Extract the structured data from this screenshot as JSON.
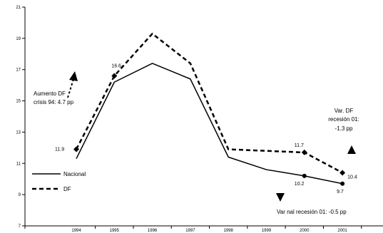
{
  "chart_data": {
    "type": "line",
    "x": [
      "1994",
      "1995",
      "1996",
      "1997",
      "1998",
      "1999",
      "2000",
      "2001"
    ],
    "series": [
      {
        "name": "Nacional",
        "values": [
          11.3,
          16.2,
          17.4,
          16.4,
          11.4,
          10.6,
          10.2,
          9.7
        ],
        "style": "solid",
        "color": "#000000"
      },
      {
        "name": "DF",
        "values": [
          11.9,
          16.6,
          19.3,
          17.4,
          11.9,
          11.8,
          11.7,
          10.4
        ],
        "style": "dashed",
        "color": "#000000"
      }
    ],
    "ylim": [
      7,
      21
    ],
    "yticks": [
      "7",
      "9",
      "11",
      "13",
      "15",
      "17",
      "19",
      "21"
    ],
    "grid": false,
    "legend_position": "lower-left",
    "point_labels": [
      {
        "series": "DF",
        "index": 0,
        "text": "11.9"
      },
      {
        "series": "DF",
        "index": 1,
        "text": "16.6"
      },
      {
        "series": "DF",
        "index": 6,
        "text": "11.7"
      },
      {
        "series": "DF",
        "index": 7,
        "text": "10.4"
      },
      {
        "series": "Nacional",
        "index": 6,
        "text": "10.2"
      },
      {
        "series": "Nacional",
        "index": 7,
        "text": "9.7"
      }
    ],
    "annotations": [
      {
        "key": "aumento",
        "lines": [
          "Aumento DF",
          "crisis 94: 4.7 pp"
        ]
      },
      {
        "key": "var_df",
        "lines": [
          "Var. DF",
          "recesión 01:",
          "-1.3 pp"
        ]
      },
      {
        "key": "var_nal",
        "lines": [
          "Var nal recesión 01: -0.5 pp"
        ]
      }
    ]
  }
}
